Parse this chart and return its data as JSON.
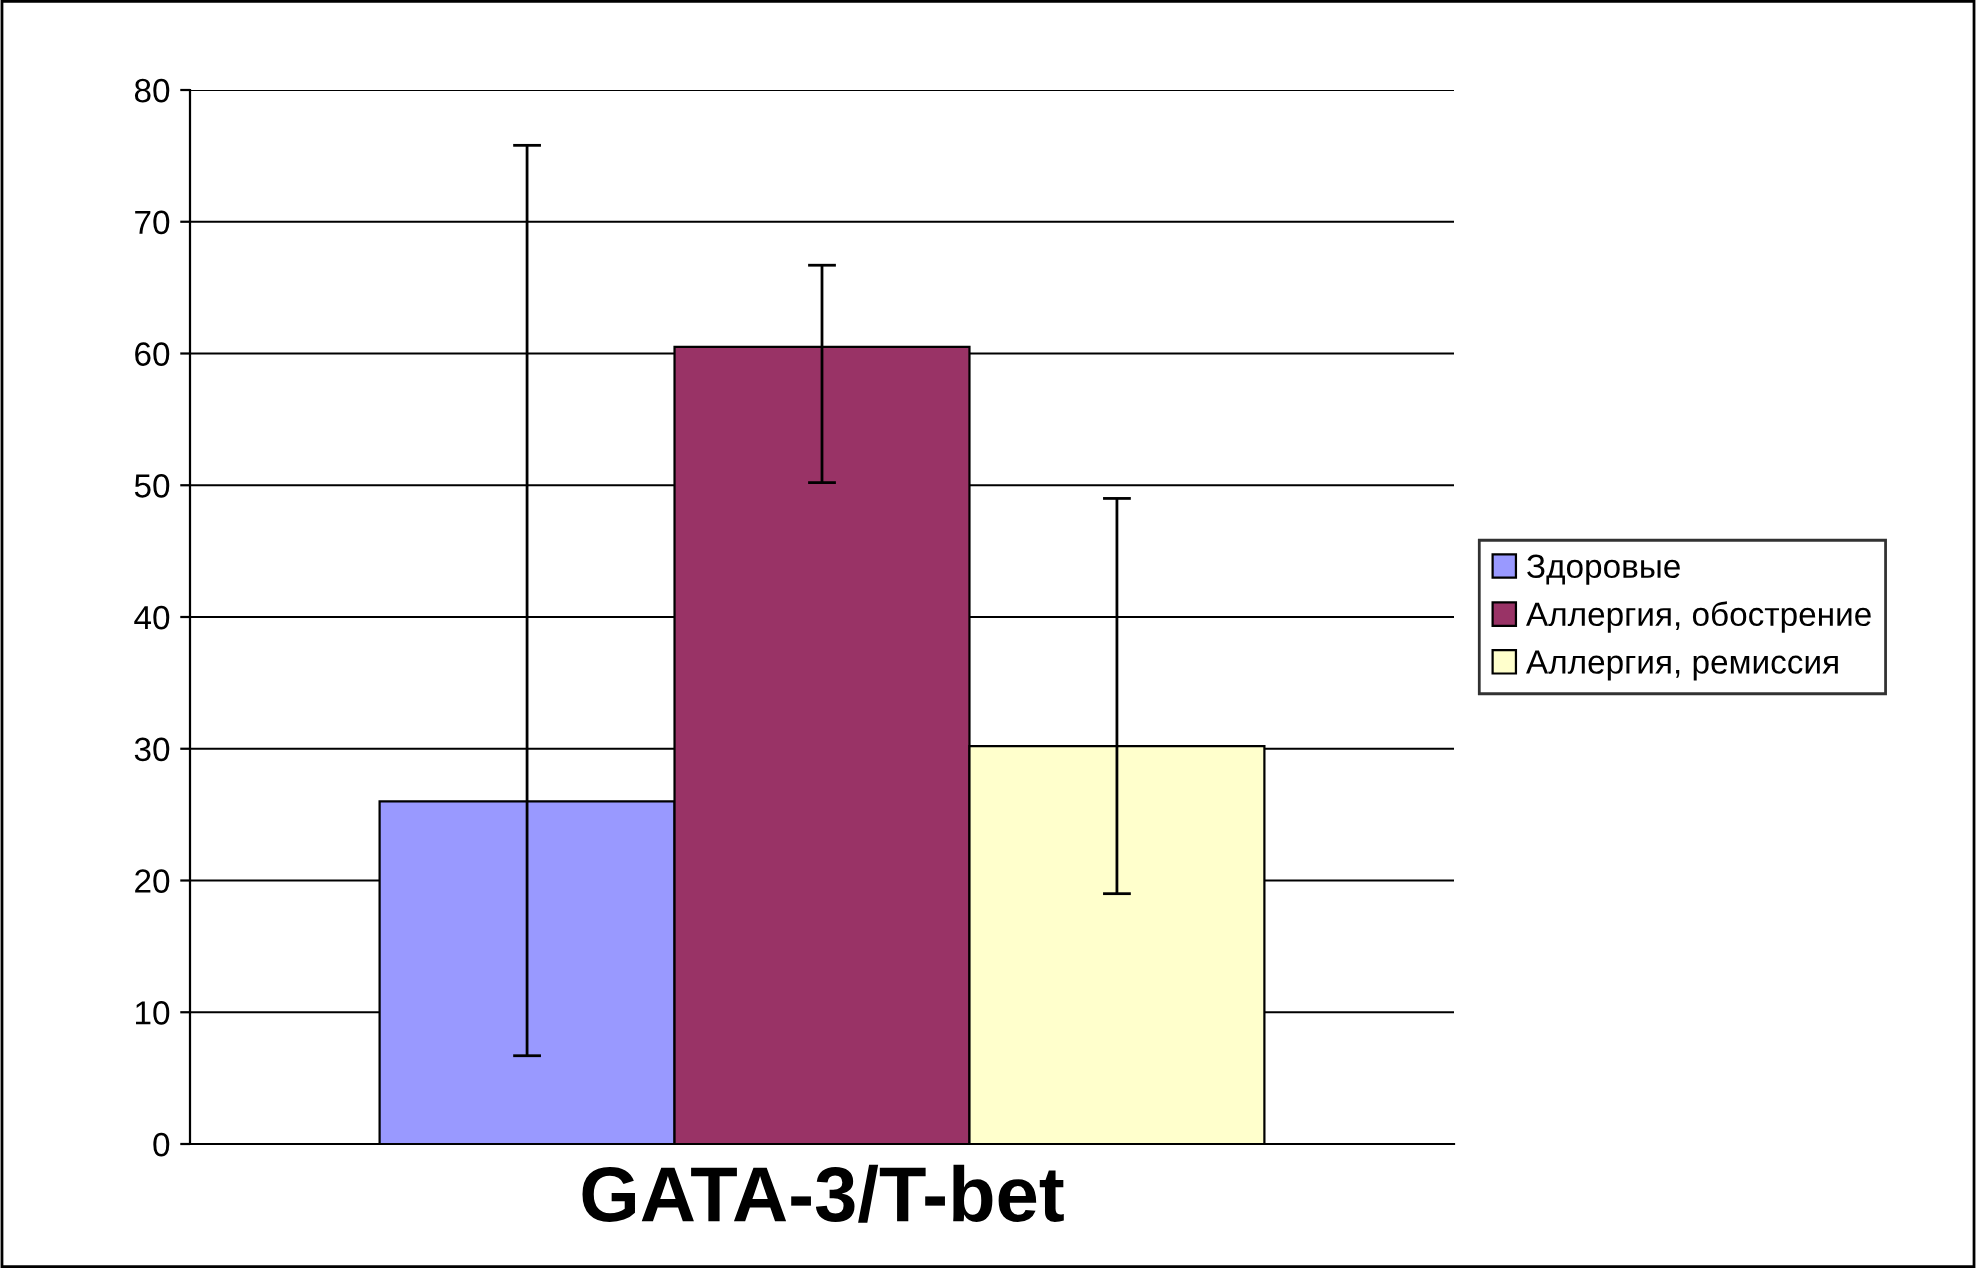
{
  "chart_data": {
    "type": "bar",
    "xlabel": "GATA-3/T-bet",
    "categories": [
      null
    ],
    "series": [
      {
        "name": "Здоровые",
        "color": "#9999ff",
        "values": [
          26
        ],
        "errors": [
          [
            6.7,
            75.8
          ]
        ]
      },
      {
        "name": "Аллергия, обострение",
        "color": "#993366",
        "values": [
          60.5
        ],
        "errors": [
          [
            50.2,
            66.7
          ]
        ]
      },
      {
        "name": "Аллергия, ремиссия",
        "color": "#ffffcc",
        "values": [
          30.2
        ],
        "errors": [
          [
            19,
            49
          ]
        ]
      }
    ],
    "ylim": [
      0,
      80
    ],
    "yticks": [
      0,
      10,
      20,
      30,
      40,
      50,
      60,
      70,
      80
    ],
    "grid": "y",
    "legend": "right"
  }
}
